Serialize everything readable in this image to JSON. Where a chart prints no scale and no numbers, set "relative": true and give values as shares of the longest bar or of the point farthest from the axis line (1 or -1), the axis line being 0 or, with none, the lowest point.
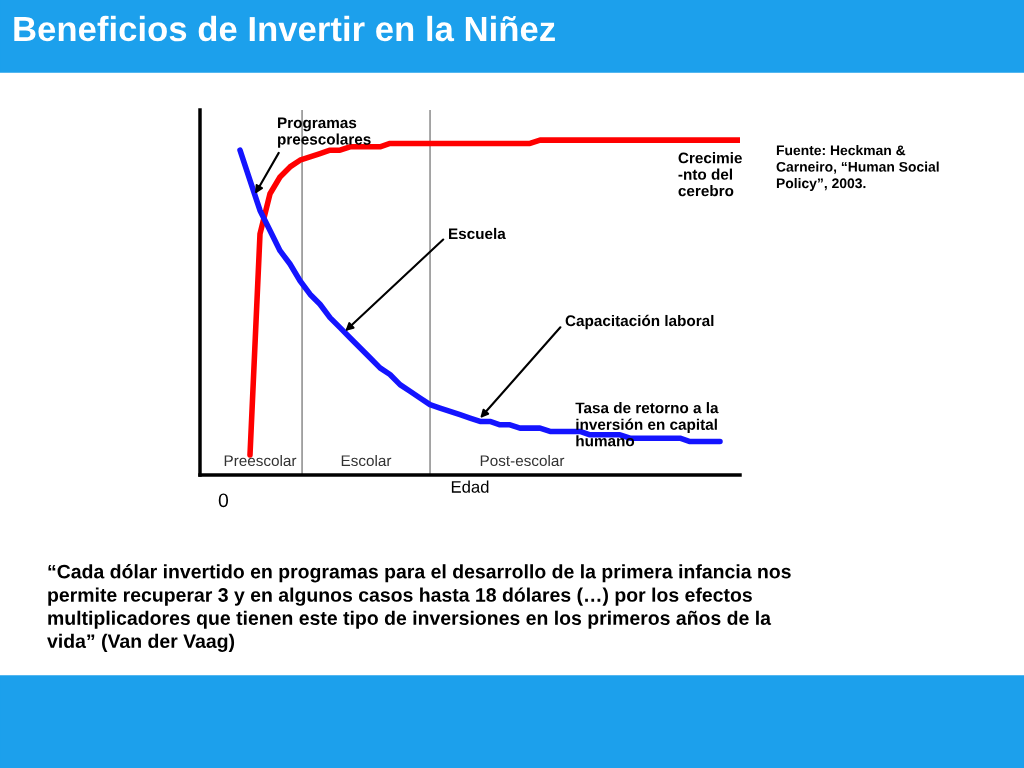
{
  "chart_data": {
    "type": "line",
    "title": "Beneficios de Invertir en la Niñez",
    "xlabel": "Edad",
    "relative": true,
    "categories": [
      null,
      null,
      null,
      null,
      null,
      null,
      null,
      null,
      null,
      null,
      null,
      null,
      null,
      null,
      null,
      null,
      null,
      null,
      null,
      null,
      null,
      null,
      null,
      null,
      null,
      null,
      null,
      null,
      null,
      null,
      null,
      null,
      null,
      null,
      null,
      null,
      null,
      null,
      null,
      null,
      null,
      null,
      null,
      null,
      null,
      null,
      null,
      null,
      null,
      null,
      null,
      null,
      null,
      null,
      null
    ],
    "series": [
      {
        "name": "Crecimie\n-nto del\ncerebro",
        "color": "#ff0000",
        "values": [
          null,
          null,
          null,
          null,
          null,
          0.06,
          0.72,
          0.84,
          0.89,
          0.92,
          0.94,
          0.95,
          0.96,
          0.97,
          0.97,
          0.98,
          0.98,
          0.98,
          0.98,
          0.99,
          0.99,
          0.99,
          0.99,
          0.99,
          0.99,
          0.99,
          0.99,
          0.99,
          0.99,
          0.99,
          0.99,
          0.99,
          0.99,
          0.99,
          1.0,
          1.0,
          1.0,
          1.0,
          1.0,
          1.0,
          1.0,
          1.0,
          1.0,
          1.0,
          1.0,
          1.0,
          1.0,
          1.0,
          1.0,
          1.0,
          1.0,
          1.0,
          1.0,
          1.0,
          1.0
        ]
      },
      {
        "name": "Tasa de retorno a la\ninversión en capital\nhumano",
        "color": "#1414ff",
        "values": [
          null,
          null,
          null,
          null,
          0.97,
          0.88,
          0.79,
          0.73,
          0.67,
          0.63,
          0.58,
          0.54,
          0.51,
          0.47,
          0.44,
          0.41,
          0.38,
          0.35,
          0.32,
          0.3,
          0.27,
          0.25,
          0.23,
          0.21,
          0.2,
          0.19,
          0.18,
          0.17,
          0.16,
          0.16,
          0.15,
          0.15,
          0.14,
          0.14,
          0.14,
          0.13,
          0.13,
          0.13,
          0.13,
          0.12,
          0.12,
          0.12,
          0.12,
          0.11,
          0.11,
          0.11,
          0.11,
          0.11,
          0.11,
          0.1,
          0.1,
          0.1,
          0.1,
          null,
          null
        ]
      }
    ],
    "annotations": [
      "Programas\npreescolares",
      "Escuela",
      "Capacitación laboral",
      "0",
      "Fuente: Heckman &\nCarneiro, “Human Social\nPolicy”, 2003.",
      "“Cada dólar invertido en programas para el desarrollo de la primera infancia nos\npermite recuperar 3 y en algunos casos hasta 18 dólares (…) por los efectos\nmultiplicadores que tienen este tipo de inversiones en los primeros años de la\nvida” (Van der Vaag)",
      "Preescolar",
      "Escolar",
      "Post-escolar"
    ],
    "legend": false,
    "grid": false,
    "marker": "none",
    "line_style": "solid"
  }
}
